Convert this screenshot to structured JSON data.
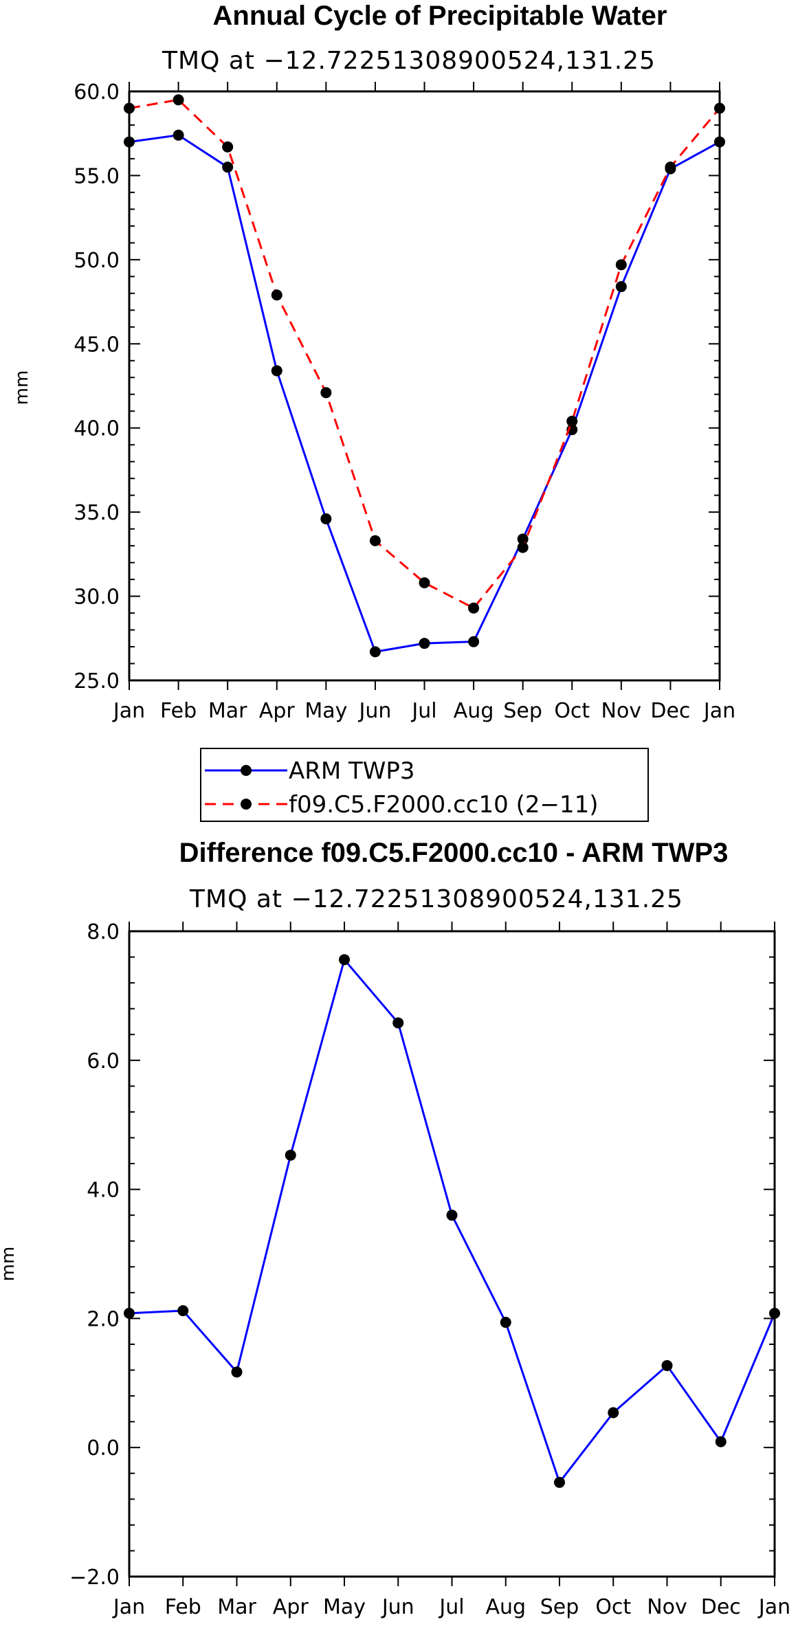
{
  "chart_data": [
    {
      "type": "line",
      "title": "Annual Cycle of Precipitable Water",
      "subtitle": "TMQ at −12.72251308900524,131.25",
      "ylabel": "mm",
      "ylim": [
        25.0,
        60.0
      ],
      "yticks": [
        "25.0",
        "30.0",
        "35.0",
        "40.0",
        "45.0",
        "50.0",
        "55.0",
        "60.0"
      ],
      "ytick_values": [
        25,
        30,
        35,
        40,
        45,
        50,
        55,
        60
      ],
      "categories": [
        "Jan",
        "Feb",
        "Mar",
        "Apr",
        "May",
        "Jun",
        "Jul",
        "Aug",
        "Sep",
        "Oct",
        "Nov",
        "Dec",
        "Jan"
      ],
      "series": [
        {
          "name": "ARM TWP3",
          "color": "#0000ff",
          "dash": "solid",
          "values": [
            57.0,
            57.4,
            55.5,
            43.4,
            34.6,
            26.7,
            27.2,
            27.3,
            33.4,
            39.9,
            48.4,
            55.4,
            57.0
          ]
        },
        {
          "name": "f09.C5.F2000.cc10 (2−11)",
          "color": "#ff0000",
          "dash": "dashed",
          "values": [
            59.0,
            59.5,
            56.7,
            47.9,
            42.1,
            33.3,
            30.8,
            29.3,
            32.9,
            40.4,
            49.7,
            55.5,
            59.0
          ]
        }
      ],
      "legend_position": "bottom"
    },
    {
      "type": "line",
      "title": "Difference f09.C5.F2000.cc10 - ARM TWP3",
      "subtitle": "TMQ at −12.72251308900524,131.25",
      "ylabel": "mm",
      "ylim": [
        -2.0,
        8.0
      ],
      "yticks": [
        "−2.0",
        "0.0",
        "2.0",
        "4.0",
        "6.0",
        "8.0"
      ],
      "ytick_values": [
        -2,
        0,
        2,
        4,
        6,
        8
      ],
      "categories": [
        "Jan",
        "Feb",
        "Mar",
        "Apr",
        "May",
        "Jun",
        "Jul",
        "Aug",
        "Sep",
        "Oct",
        "Nov",
        "Dec",
        "Jan"
      ],
      "series": [
        {
          "name": "Difference",
          "color": "#0000ff",
          "dash": "solid",
          "values": [
            2.08,
            2.12,
            1.17,
            4.53,
            7.56,
            6.58,
            3.6,
            1.94,
            -0.54,
            0.54,
            1.27,
            0.09,
            2.08
          ]
        }
      ]
    }
  ]
}
